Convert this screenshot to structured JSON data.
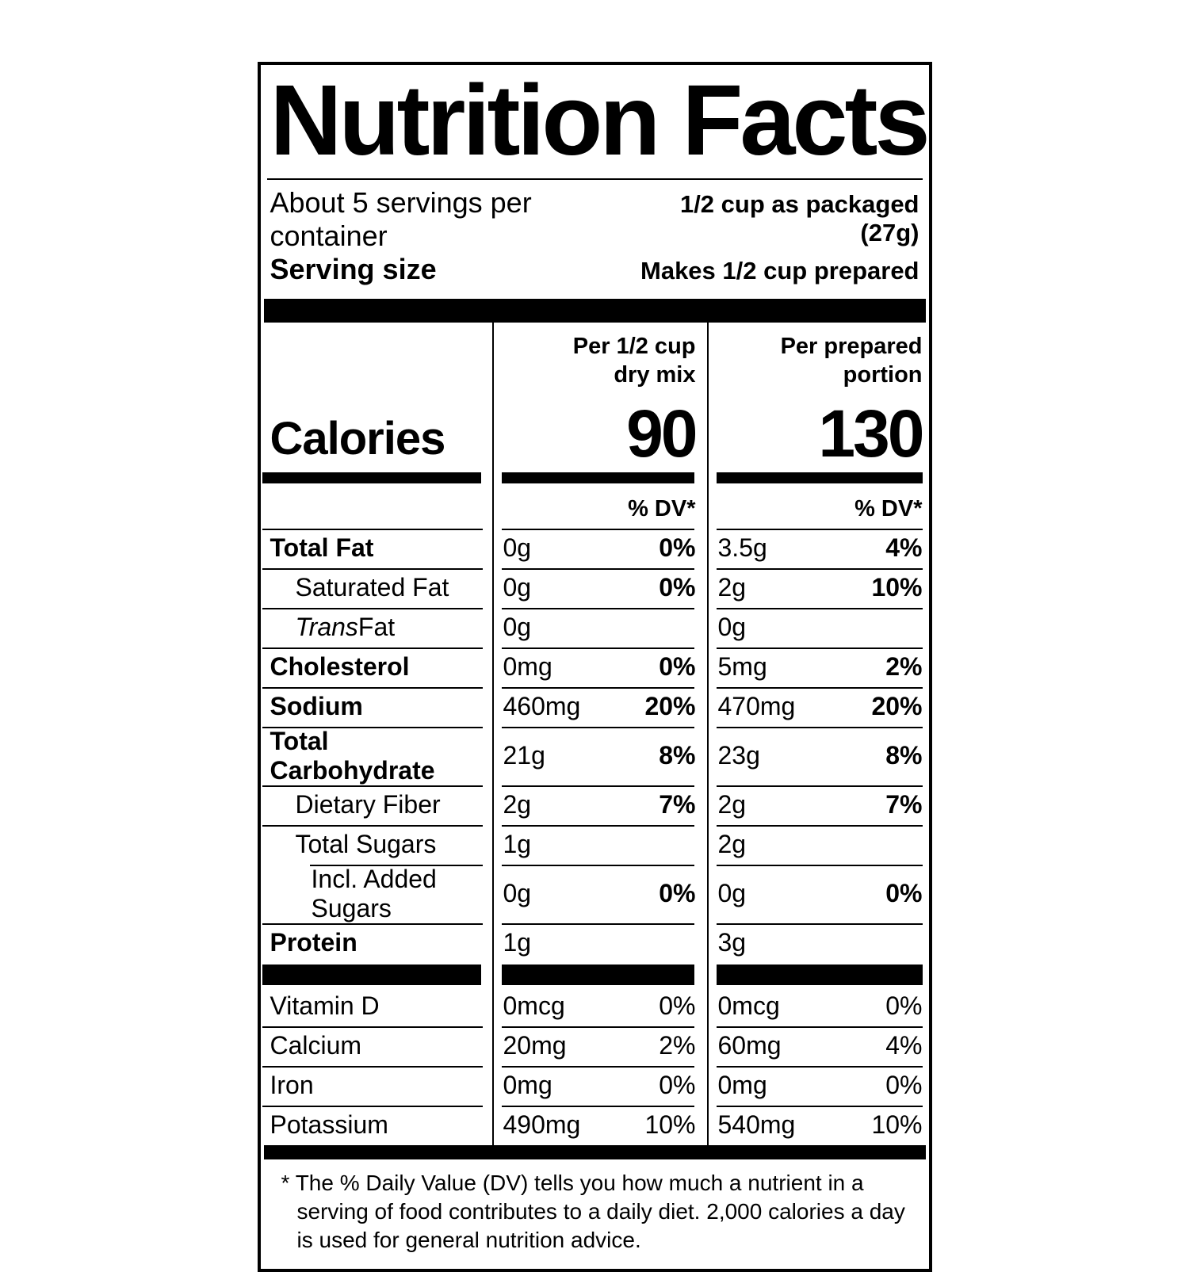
{
  "label": {
    "title": "Nutrition Facts",
    "servings_per_container": "About 5 servings per container",
    "serving_size": {
      "label": "Serving size",
      "line1": "1/2 cup as packaged (27g)",
      "line2": "Makes 1/2 cup prepared"
    },
    "calories_label": "Calories",
    "columns": [
      {
        "header_line1": "Per 1/2 cup",
        "header_line2": "dry mix",
        "calories": "90",
        "dv_header": "% DV*"
      },
      {
        "header_line1": "Per prepared",
        "header_line2": "portion",
        "calories": "130",
        "dv_header": "% DV*"
      }
    ],
    "nutrients": [
      {
        "name_italic": "",
        "name": "Total Fat",
        "c1_amt": "0g",
        "c1_dv": "0%",
        "c2_amt": "3.5g",
        "c2_dv": "4%"
      },
      {
        "name_italic": "",
        "name": "Saturated Fat",
        "c1_amt": "0g",
        "c1_dv": "0%",
        "c2_amt": "2g",
        "c2_dv": "10%"
      },
      {
        "name_italic": "Trans",
        "name": " Fat",
        "c1_amt": "0g",
        "c1_dv": "",
        "c2_amt": "0g",
        "c2_dv": ""
      },
      {
        "name_italic": "",
        "name": "Cholesterol",
        "c1_amt": "0mg",
        "c1_dv": "0%",
        "c2_amt": "5mg",
        "c2_dv": "2%"
      },
      {
        "name_italic": "",
        "name": "Sodium",
        "c1_amt": "460mg",
        "c1_dv": "20%",
        "c2_amt": "470mg",
        "c2_dv": "20%"
      },
      {
        "name_italic": "",
        "name": "Total Carbohydrate",
        "c1_amt": "21g",
        "c1_dv": "8%",
        "c2_amt": "23g",
        "c2_dv": "8%"
      },
      {
        "name_italic": "",
        "name": "Dietary Fiber",
        "c1_amt": "2g",
        "c1_dv": "7%",
        "c2_amt": "2g",
        "c2_dv": "7%"
      },
      {
        "name_italic": "",
        "name": "Total Sugars",
        "c1_amt": "1g",
        "c1_dv": "",
        "c2_amt": "2g",
        "c2_dv": ""
      },
      {
        "name_italic": "",
        "name": "Incl. Added Sugars",
        "c1_amt": "0g",
        "c1_dv": "0%",
        "c2_amt": "0g",
        "c2_dv": "0%"
      },
      {
        "name_italic": "",
        "name": "Protein",
        "c1_amt": "1g",
        "c1_dv": "",
        "c2_amt": "3g",
        "c2_dv": ""
      }
    ],
    "vitamins": [
      {
        "name": "Vitamin D",
        "c1_amt": "0mcg",
        "c1_dv": "0%",
        "c2_amt": "0mcg",
        "c2_dv": "0%"
      },
      {
        "name": "Calcium",
        "c1_amt": "20mg",
        "c1_dv": "2%",
        "c2_amt": "60mg",
        "c2_dv": "4%"
      },
      {
        "name": "Iron",
        "c1_amt": "0mg",
        "c1_dv": "0%",
        "c2_amt": "0mg",
        "c2_dv": "0%"
      },
      {
        "name": "Potassium",
        "c1_amt": "490mg",
        "c1_dv": "10%",
        "c2_amt": "540mg",
        "c2_dv": "10%"
      }
    ],
    "footnote": {
      "marker": "*",
      "text": "The % Daily Value (DV) tells you how much a nutrient in a serving of food contributes to a daily diet. 2,000 calories a day is used for general nutrition advice."
    },
    "colors": {
      "ink": "#000000",
      "paper": "#ffffff"
    }
  }
}
